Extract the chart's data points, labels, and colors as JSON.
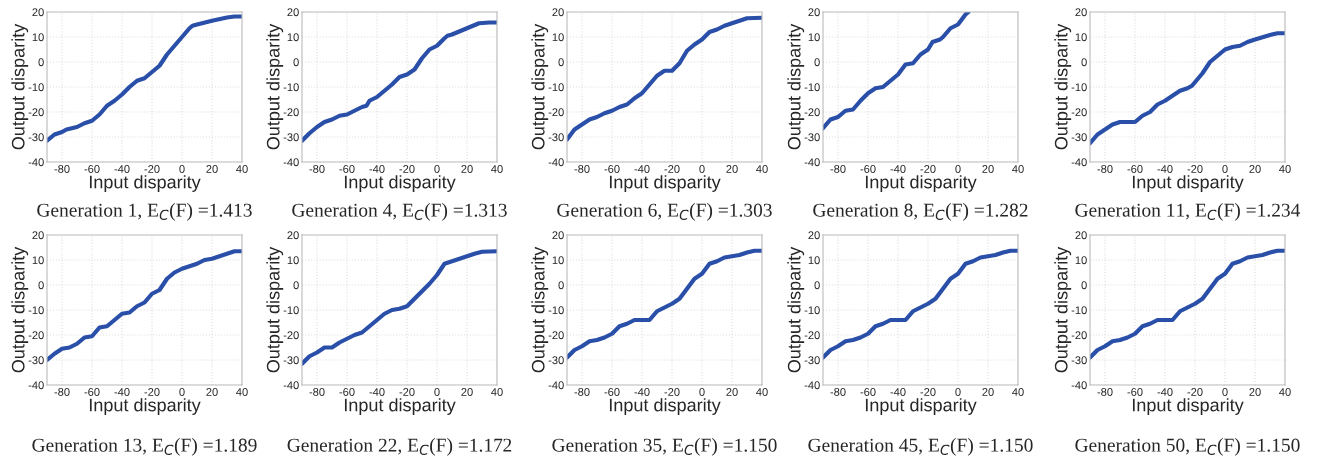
{
  "chart_data": [
    {
      "type": "line",
      "title": "Generation 1, E$_{C}$(F) =1.413",
      "xlabel": "Input disparity",
      "ylabel": "Output disparity",
      "xlim": [
        -90,
        40
      ],
      "ylim": [
        -40,
        20
      ],
      "xticks": [
        -80,
        -60,
        -40,
        -20,
        0,
        20,
        40
      ],
      "yticks": [
        -40,
        -30,
        -20,
        -10,
        0,
        10,
        20
      ],
      "grid": true,
      "series": [
        {
          "color": "#2a4fa8",
          "x": [
            -90,
            -85,
            -80,
            -77,
            -70,
            -65,
            -60,
            -55,
            -50,
            -45,
            -40,
            -35,
            -30,
            -25,
            -20,
            -15,
            -10,
            -5,
            0,
            5,
            7,
            10,
            20,
            30,
            35,
            40
          ],
          "values": [
            -31.5,
            -29,
            -28,
            -27,
            -26,
            -24.5,
            -23.5,
            -21,
            -17.5,
            -15.5,
            -13,
            -10,
            -7.5,
            -6.5,
            -4,
            -1.5,
            3,
            6.5,
            10,
            13.5,
            14.5,
            15,
            16.5,
            17.8,
            18.2,
            18.2
          ]
        }
      ]
    },
    {
      "type": "line",
      "title": "Generation 4, E$_{C}$(F) =1.313",
      "xlabel": "Input disparity",
      "ylabel": "Output disparity",
      "xlim": [
        -90,
        40
      ],
      "ylim": [
        -40,
        20
      ],
      "xticks": [
        -80,
        -60,
        -40,
        -20,
        0,
        20,
        40
      ],
      "yticks": [
        -40,
        -30,
        -20,
        -10,
        0,
        10,
        20
      ],
      "grid": true,
      "series": [
        {
          "color": "#2a4fa8",
          "x": [
            -90,
            -85,
            -80,
            -75,
            -70,
            -65,
            -60,
            -55,
            -50,
            -47,
            -45,
            -40,
            -35,
            -30,
            -25,
            -20,
            -15,
            -10,
            -5,
            0,
            5,
            7,
            10,
            20,
            28,
            35,
            40
          ],
          "values": [
            -31.5,
            -28.5,
            -26,
            -24,
            -23,
            -21.5,
            -21,
            -19.5,
            -18,
            -17.5,
            -15.5,
            -14,
            -11.5,
            -9,
            -6,
            -5,
            -3,
            1.5,
            5,
            6.5,
            9.5,
            10.5,
            11,
            13.5,
            15.5,
            15.8,
            15.8
          ]
        }
      ]
    },
    {
      "type": "line",
      "title": "Generation 6, E$_{C}$(F) =1.303",
      "xlabel": "Input disparity",
      "ylabel": "Output disparity",
      "xlim": [
        -90,
        40
      ],
      "ylim": [
        -40,
        20
      ],
      "xticks": [
        -80,
        -60,
        -40,
        -20,
        0,
        20,
        40
      ],
      "yticks": [
        -40,
        -30,
        -20,
        -10,
        0,
        10,
        20
      ],
      "grid": true,
      "series": [
        {
          "color": "#2a4fa8",
          "x": [
            -90,
            -85,
            -80,
            -75,
            -70,
            -65,
            -60,
            -55,
            -50,
            -45,
            -40,
            -35,
            -30,
            -25,
            -20,
            -15,
            -10,
            -5,
            0,
            5,
            10,
            15,
            20,
            25,
            30,
            40
          ],
          "values": [
            -31,
            -27,
            -25,
            -23,
            -22,
            -20.5,
            -19.5,
            -18,
            -17,
            -14.5,
            -12.5,
            -9,
            -5.5,
            -3.5,
            -3.5,
            -0.5,
            4.5,
            7,
            9,
            12,
            13,
            14.5,
            15.5,
            16.5,
            17.5,
            17.7
          ]
        }
      ]
    },
    {
      "type": "line",
      "title": "Generation 8, E$_{C}$(F) =1.282",
      "xlabel": "Input disparity",
      "ylabel": "Output disparity",
      "xlim": [
        -90,
        40
      ],
      "ylim": [
        -40,
        20
      ],
      "xticks": [
        -80,
        -60,
        -40,
        -20,
        0,
        20,
        40
      ],
      "yticks": [
        -40,
        -30,
        -20,
        -10,
        0,
        10,
        20
      ],
      "grid": true,
      "series": [
        {
          "color": "#2a4fa8",
          "x": [
            -90,
            -85,
            -80,
            -75,
            -70,
            -65,
            -60,
            -55,
            -50,
            -45,
            -40,
            -35,
            -30,
            -25,
            -20,
            -17,
            -12,
            -10,
            -5,
            0,
            5,
            7
          ],
          "values": [
            -26.5,
            -23,
            -22,
            -19.5,
            -19,
            -15.5,
            -12.5,
            -10.5,
            -10,
            -7.5,
            -5,
            -1,
            -0.5,
            3,
            5,
            8,
            9,
            10,
            13.5,
            15,
            19,
            20
          ]
        }
      ]
    },
    {
      "type": "line",
      "title": "Generation 11, E$_{C}$(F) =1.234",
      "xlabel": "Input disparity",
      "ylabel": "Output disparity",
      "xlim": [
        -90,
        40
      ],
      "ylim": [
        -40,
        20
      ],
      "xticks": [
        -80,
        -60,
        -40,
        -20,
        0,
        20,
        40
      ],
      "yticks": [
        -40,
        -30,
        -20,
        -10,
        0,
        10,
        20
      ],
      "grid": true,
      "series": [
        {
          "color": "#2a4fa8",
          "x": [
            -90,
            -85,
            -80,
            -75,
            -70,
            -60,
            -55,
            -50,
            -45,
            -40,
            -35,
            -30,
            -25,
            -22,
            -15,
            -10,
            -5,
            0,
            5,
            10,
            15,
            20,
            30,
            35,
            40
          ],
          "values": [
            -32.5,
            -29,
            -27,
            -25,
            -24,
            -24,
            -21.5,
            -20,
            -17,
            -15.5,
            -13.5,
            -11.5,
            -10.5,
            -9.5,
            -4.5,
            0,
            2.5,
            5,
            6,
            6.5,
            8,
            9,
            10.8,
            11.5,
            11.5
          ]
        }
      ]
    },
    {
      "type": "line",
      "title": "Generation 13, E$_{C}$(F) =1.189",
      "xlabel": "Input disparity",
      "ylabel": "Output disparity",
      "xlim": [
        -90,
        40
      ],
      "ylim": [
        -40,
        20
      ],
      "xticks": [
        -80,
        -60,
        -40,
        -20,
        0,
        20,
        40
      ],
      "yticks": [
        -40,
        -30,
        -20,
        -10,
        0,
        10,
        20
      ],
      "grid": true,
      "series": [
        {
          "color": "#2a4fa8",
          "x": [
            -90,
            -85,
            -80,
            -75,
            -70,
            -65,
            -60,
            -55,
            -50,
            -45,
            -40,
            -35,
            -30,
            -25,
            -20,
            -15,
            -10,
            -5,
            0,
            10,
            15,
            20,
            25,
            30,
            35,
            40
          ],
          "values": [
            -30,
            -27.5,
            -25.5,
            -25,
            -23.5,
            -21,
            -20.5,
            -17,
            -16.5,
            -14,
            -11.5,
            -11,
            -8.5,
            -7,
            -3.5,
            -2,
            2.5,
            5,
            6.5,
            8.5,
            10,
            10.5,
            11.5,
            12.5,
            13.5,
            13.5
          ]
        }
      ]
    },
    {
      "type": "line",
      "title": "Generation 22, E$_{C}$(F) =1.172",
      "xlabel": "Input disparity",
      "ylabel": "Output disparity",
      "xlim": [
        -90,
        40
      ],
      "ylim": [
        -40,
        20
      ],
      "xticks": [
        -80,
        -60,
        -40,
        -20,
        0,
        20,
        40
      ],
      "yticks": [
        -40,
        -30,
        -20,
        -10,
        0,
        10,
        20
      ],
      "grid": true,
      "series": [
        {
          "color": "#2a4fa8",
          "x": [
            -90,
            -85,
            -80,
            -75,
            -70,
            -65,
            -60,
            -55,
            -50,
            -45,
            -40,
            -35,
            -30,
            -25,
            -20,
            -15,
            -10,
            -5,
            0,
            5,
            10,
            15,
            20,
            25,
            30,
            40
          ],
          "values": [
            -31.5,
            -28.5,
            -27,
            -25,
            -25,
            -23,
            -21.5,
            -20,
            -19,
            -16.5,
            -14,
            -11.5,
            -10,
            -9.5,
            -8.5,
            -5.5,
            -2.5,
            0.5,
            4,
            8.5,
            9.5,
            10.5,
            11.5,
            12.5,
            13.3,
            13.5
          ]
        }
      ]
    },
    {
      "type": "line",
      "title": "Generation 35, E$_{C}$(F) =1.150",
      "xlabel": "Input disparity",
      "ylabel": "Output disparity",
      "xlim": [
        -90,
        40
      ],
      "ylim": [
        -40,
        20
      ],
      "xticks": [
        -80,
        -60,
        -40,
        -20,
        0,
        20,
        40
      ],
      "yticks": [
        -40,
        -30,
        -20,
        -10,
        0,
        10,
        20
      ],
      "grid": true,
      "series": [
        {
          "color": "#2a4fa8",
          "x": [
            -90,
            -85,
            -80,
            -75,
            -70,
            -65,
            -60,
            -55,
            -50,
            -45,
            -35,
            -30,
            -25,
            -20,
            -15,
            -10,
            -5,
            0,
            5,
            10,
            15,
            20,
            25,
            30,
            35,
            40
          ],
          "values": [
            -29,
            -26,
            -24.5,
            -22.5,
            -22,
            -21,
            -19.5,
            -16.5,
            -15.5,
            -14,
            -14,
            -10.5,
            -9,
            -7.5,
            -5.5,
            -1.5,
            2.5,
            4.5,
            8.5,
            9.5,
            11,
            11.5,
            12,
            13,
            13.7,
            13.7
          ]
        }
      ]
    },
    {
      "type": "line",
      "title": "Generation 45, E$_{C}$(F) =1.150",
      "xlabel": "Input disparity",
      "ylabel": "Output disparity",
      "xlim": [
        -90,
        40
      ],
      "ylim": [
        -40,
        20
      ],
      "xticks": [
        -80,
        -60,
        -40,
        -20,
        0,
        20,
        40
      ],
      "yticks": [
        -40,
        -30,
        -20,
        -10,
        0,
        10,
        20
      ],
      "grid": true,
      "series": [
        {
          "color": "#2a4fa8",
          "x": [
            -90,
            -85,
            -80,
            -75,
            -70,
            -65,
            -60,
            -55,
            -50,
            -45,
            -35,
            -30,
            -25,
            -20,
            -15,
            -10,
            -5,
            0,
            5,
            10,
            15,
            20,
            25,
            30,
            35,
            40
          ],
          "values": [
            -29,
            -26,
            -24.5,
            -22.5,
            -22,
            -21,
            -19.5,
            -16.5,
            -15.5,
            -14,
            -14,
            -10.5,
            -9,
            -7.5,
            -5.5,
            -1.5,
            2.5,
            4.5,
            8.5,
            9.5,
            11,
            11.5,
            12,
            13,
            13.7,
            13.7
          ]
        }
      ]
    },
    {
      "type": "line",
      "title": "Generation 50, E$_{C}$(F) =1.150",
      "xlabel": "Input disparity",
      "ylabel": "Output disparity",
      "xlim": [
        -90,
        40
      ],
      "ylim": [
        -40,
        20
      ],
      "xticks": [
        -80,
        -60,
        -40,
        -20,
        0,
        20,
        40
      ],
      "yticks": [
        -40,
        -30,
        -20,
        -10,
        0,
        10,
        20
      ],
      "grid": true,
      "series": [
        {
          "color": "#2a4fa8",
          "x": [
            -90,
            -85,
            -80,
            -75,
            -70,
            -65,
            -60,
            -55,
            -50,
            -45,
            -35,
            -30,
            -25,
            -20,
            -15,
            -10,
            -5,
            0,
            5,
            10,
            15,
            20,
            25,
            30,
            35,
            40
          ],
          "values": [
            -29,
            -26,
            -24.5,
            -22.5,
            -22,
            -21,
            -19.5,
            -16.5,
            -15.5,
            -14,
            -14,
            -10.5,
            -9,
            -7.5,
            -5.5,
            -1.5,
            2.5,
            4.5,
            8.5,
            9.5,
            11,
            11.5,
            12,
            13,
            13.7,
            13.7
          ]
        }
      ]
    }
  ]
}
